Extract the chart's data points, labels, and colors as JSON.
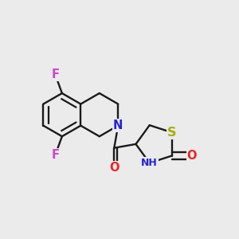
{
  "background_color": "#ebebeb",
  "atom_colors": {
    "F": "#cc44cc",
    "N": "#2222dd",
    "O": "#ee2222",
    "S": "#aaaa00",
    "C": "#1a1a1a",
    "NH": "#2222dd"
  },
  "bond_color": "#1a1a1a",
  "bond_width": 1.7,
  "font_size": 10.5
}
